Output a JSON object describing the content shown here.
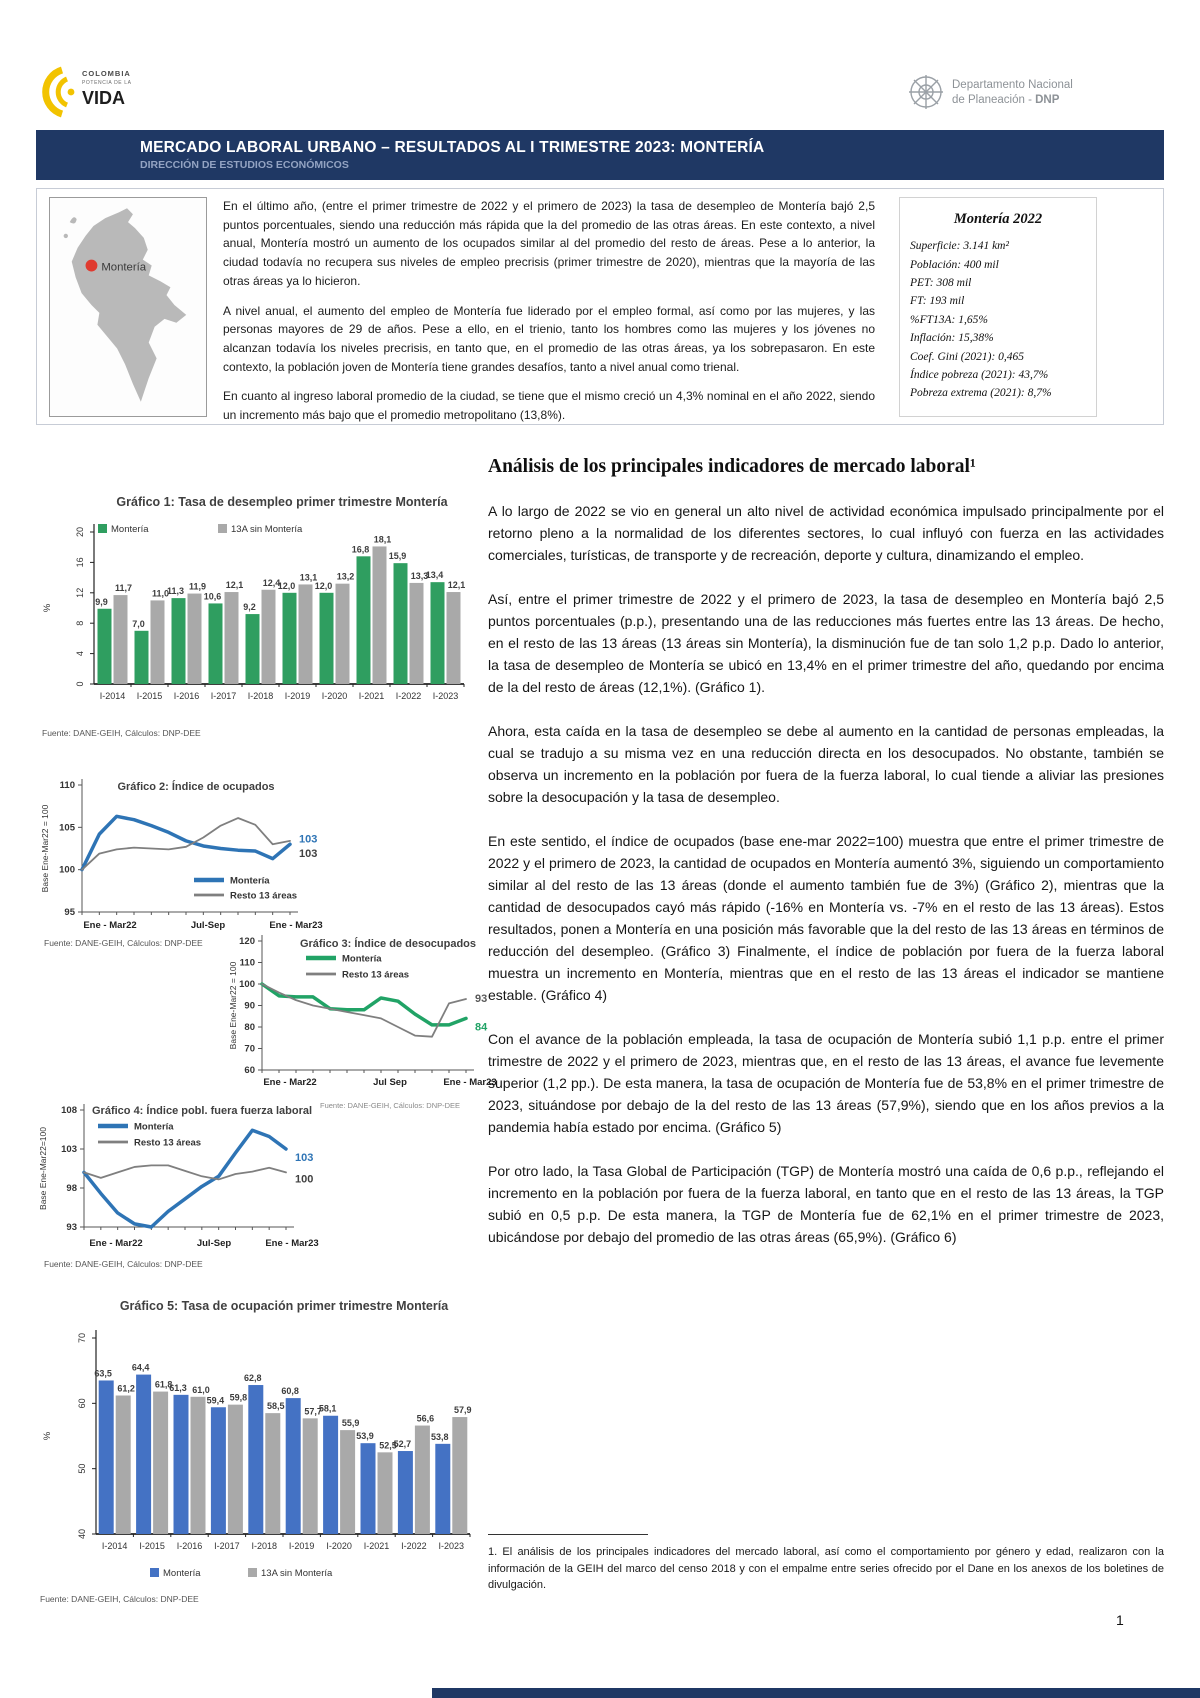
{
  "colors": {
    "navy": "#1f3864",
    "subtitle_blue": "#93a3c2",
    "green_bar": "#2f9e60",
    "gray_series": "#a9a9a9",
    "blue_bar": "#4472c4",
    "blue_line": "#2e74b5",
    "gray_line": "#7f7f7f",
    "green_line": "#21a366",
    "map_red": "#e03a2f"
  },
  "header": {
    "brand_left": {
      "line1": "COLOMBIA",
      "line2": "POTENCIA DE LA",
      "line3": "VIDA"
    },
    "brand_right": {
      "line1": "Departamento Nacional",
      "line2a": "de Planeación - ",
      "line2b": "DNP"
    },
    "title": "MERCADO LABORAL URBANO – RESULTADOS AL I TRIMESTRE 2023: MONTERÍA",
    "subtitle": "DIRECCIÓN DE ESTUDIOS ECONÓMICOS"
  },
  "intro": {
    "map_label": "Montería",
    "paragraphs": [
      "En el último año, (entre el primer trimestre de 2022 y el primero de 2023) la tasa de desempleo de Montería bajó 2,5 puntos porcentuales, siendo una reducción más rápida que la del promedio de las otras áreas. En este contexto, a nivel anual, Montería mostró un aumento de los ocupados similar al del promedio del resto de áreas. Pese a lo anterior, la ciudad todavía no recupera sus niveles de empleo precrisis (primer trimestre de 2020), mientras que la mayoría de las otras áreas ya lo hicieron.",
      "A nivel anual, el aumento del empleo de Montería fue liderado por el empleo formal, así como por las mujeres, y las personas mayores de 29 de años. Pese a ello, en el trienio, tanto los hombres como las mujeres y los jóvenes no alcanzan todavía los niveles precrisis, en tanto que, en el promedio de las otras áreas, ya los sobrepasaron. En este contexto,  la población joven de Montería tiene grandes desafíos, tanto a nivel anual como trienal.",
      "En cuanto al ingreso laboral promedio de la ciudad, se tiene que el mismo creció un 4,3% nominal en el año 2022, siendo un incremento más bajo que el promedio metropolitano (13,8%)."
    ],
    "stats": {
      "title": "Montería 2022",
      "lines": [
        "Superficie: 3.141 km²",
        "Población: 400 mil",
        "PET: 308 mil",
        "FT: 193 mil",
        "%FT13A: 1,65%",
        "Inflación: 15,38%",
        "Coef. Gini (2021): 0,465",
        "Índice pobreza (2021): 43,7%",
        "Pobreza extrema (2021): 8,7%"
      ]
    }
  },
  "analysis": {
    "heading": "Análisis de los principales indicadores de mercado laboral¹",
    "paragraphs": [
      "A lo largo de 2022 se vio en general un alto nivel de actividad económica impulsado principalmente por el retorno pleno a la normalidad de los diferentes sectores, lo cual influyó con fuerza en las actividades comerciales, turísticas, de transporte y de recreación, deporte y cultura, dinamizando el empleo.",
      "Así, entre el primer trimestre de 2022 y el primero de 2023, la tasa de desempleo en Montería bajó 2,5 puntos porcentuales (p.p.), presentando una de las reducciones más fuertes entre las 13 áreas. De hecho, en el resto de las 13 áreas (13 áreas sin Montería), la disminución fue de tan solo 1,2 p.p. Dado lo anterior, la tasa de desempleo de Montería se ubicó en 13,4% en el primer trimestre del año, quedando por encima de la del resto de áreas (12,1%). (Gráfico 1).",
      "Ahora, esta caída en la tasa de desempleo se debe al aumento en la cantidad de personas empleadas, la cual se tradujo a su misma vez en una reducción directa en los desocupados. No obstante, también se observa un incremento en la población por fuera de la fuerza laboral, lo cual tiende a aliviar las presiones sobre la desocupación y la tasa de desempleo.",
      "En este sentido, el índice de ocupados (base ene-mar 2022=100) muestra que entre el primer trimestre de 2022 y el primero de 2023, la cantidad de ocupados en Montería aumentó 3%, siguiendo un comportamiento similar al del resto de las 13 áreas (donde el aumento también fue de 3%) (Gráfico 2), mientras que la cantidad de desocupados cayó más rápido (-16% en Montería vs. -7% en el resto de las 13 áreas). Estos resultados, ponen a Montería en una posición más favorable que la del resto de las 13 áreas en términos de reducción del desempleo. (Gráfico 3) Finalmente, el índice de población por fuera de la fuerza laboral muestra un incremento en Montería, mientras que en el resto de las 13 áreas el indicador se mantiene estable. (Gráfico 4)",
      "Con el avance de la población empleada, la tasa de ocupación de Montería subió 1,1 p.p. entre el primer trimestre de 2022 y el primero de 2023, mientras que, en el resto de las 13 áreas, el avance fue levemente superior (1,2 pp.). De esta manera, la tasa de ocupación de Montería fue de 53,8% en el primer trimestre de 2023, situándose por debajo de la del resto de las 13 áreas (57,9%), siendo que en los años previos a la pandemia había estado por encima. (Gráfico 5)",
      "Por otro lado, la Tasa Global de Participación (TGP) de Montería mostró una caída de 0,6 p.p., reflejando el incremento en la población por fuera de la fuerza laboral, en tanto que en el resto de las 13 áreas, la TGP subió en 0,5 p.p. De esta manera, la TGP de Montería fue de 62,1% en el primer trimestre de 2023, ubicándose por debajo del promedio de las otras áreas (65,9%). (Gráfico 6)"
    ],
    "footnote": "1.   El análisis de los principales indicadores del mercado laboral, así como el comportamiento por género y edad, realizaron con la información de la GEIH del marco del censo 2018 y con el empalme entre series ofrecido por el Dane en los anexos de los boletines de divulgación.",
    "page_number": "1"
  },
  "chart_data": [
    {
      "id": "grafico1",
      "type": "bar",
      "title": "Gráfico 1: Tasa de desempleo primer trimestre Montería",
      "categories": [
        "I-2014",
        "I-2015",
        "I-2016",
        "I-2017",
        "I-2018",
        "I-2019",
        "I-2020",
        "I-2021",
        "I-2022",
        "I-2023"
      ],
      "series": [
        {
          "name": "Montería",
          "color": "#2f9e60",
          "values": [
            9.9,
            7.0,
            11.3,
            10.6,
            9.2,
            12.0,
            12.0,
            16.8,
            15.9,
            13.4
          ]
        },
        {
          "name": "13A sin Montería",
          "color": "#a9a9a9",
          "values": [
            11.7,
            11.0,
            11.9,
            12.1,
            12.4,
            13.1,
            13.2,
            18.1,
            13.3,
            12.1
          ]
        }
      ],
      "ylabel": "%",
      "ylim": [
        0,
        20
      ],
      "yticks": [
        0,
        4,
        8,
        12,
        16,
        20
      ],
      "grid": false,
      "legend_position": "top",
      "source": "Fuente: DANE-GEIH, Cálculos: DNP-DEE"
    },
    {
      "id": "grafico2",
      "type": "line",
      "title": "Gráfico 2: Índice de ocupados",
      "x_axis_labels": [
        "Ene - Mar22",
        "Jul-Sep",
        "Ene - Mar23"
      ],
      "series": [
        {
          "name": "Montería",
          "color": "#2e74b5",
          "width": 3.5,
          "end_label": "103",
          "end_label_color": "#2e74b5",
          "end_dy": -2,
          "values": [
            100,
            104.2,
            106.3,
            105.9,
            105.2,
            104.4,
            103.4,
            102.8,
            102.5,
            102.3,
            102.2,
            101.3,
            103
          ]
        },
        {
          "name": "Resto 13 áreas",
          "color": "#7f7f7f",
          "width": 1.8,
          "end_label": "103",
          "end_label_color": "#404040",
          "end_dy": 16,
          "values": [
            100,
            101.9,
            102.4,
            102.6,
            102.5,
            102.4,
            102.7,
            103.8,
            105.2,
            106.1,
            105.3,
            103,
            103.4
          ]
        }
      ],
      "ylabel": "Base Ene-Mar22 = 100",
      "ylim": [
        95,
        110
      ],
      "yticks": [
        95,
        100,
        105,
        110
      ],
      "grid": false,
      "legend_position": "inside-bottom",
      "source": "Fuente: DANE-GEIH, Cálculos: DNP-DEE"
    },
    {
      "id": "grafico3",
      "type": "line",
      "title": "Gráfico 3: Índice de desocupados",
      "x_axis_labels": [
        "Ene - Mar22",
        "Jul Sep",
        "Ene - Mar23"
      ],
      "series": [
        {
          "name": "Montería",
          "color": "#21a366",
          "width": 3.5,
          "end_label": "84",
          "end_label_color": "#21a366",
          "end_dy": 12,
          "values": [
            100,
            94.5,
            94,
            94,
            88.5,
            88,
            88,
            93.5,
            92,
            86,
            81,
            81,
            84
          ]
        },
        {
          "name": "Resto 13 áreas",
          "color": "#7f7f7f",
          "width": 1.8,
          "end_label": "93",
          "end_label_color": "#595959",
          "end_dy": 3,
          "values": [
            100,
            96,
            92.5,
            90,
            88.5,
            87,
            85.5,
            84,
            80,
            76,
            75.5,
            91,
            93
          ]
        }
      ],
      "ylabel": "Base Ene-Mar22 = 100",
      "ylim": [
        60,
        120
      ],
      "yticks": [
        60,
        70,
        80,
        90,
        100,
        110,
        120
      ],
      "grid": false,
      "legend_position": "inside-top",
      "source": "Fuente: DANE-GEIH, Cálculos: DNP-DEE"
    },
    {
      "id": "grafico4",
      "type": "line",
      "title": "Gráfico 4: Índice pobl. fuera fuerza laboral",
      "x_axis_labels": [
        "Ene - Mar22",
        "Jul-Sep",
        "Ene - Mar23"
      ],
      "series": [
        {
          "name": "Montería",
          "color": "#2e74b5",
          "width": 3.5,
          "end_label": "103",
          "end_label_color": "#2e74b5",
          "end_dy": 12,
          "values": [
            100,
            97.3,
            94.8,
            93.4,
            93,
            95,
            96.6,
            98.2,
            99.5,
            102.5,
            105.4,
            104.6,
            103
          ]
        },
        {
          "name": "Resto 13 áreas",
          "color": "#7f7f7f",
          "width": 1.8,
          "end_label": "100",
          "end_label_color": "#404040",
          "end_dy": 10,
          "values": [
            100,
            99.3,
            100,
            100.7,
            100.9,
            100.9,
            100.2,
            99.5,
            99.1,
            99.8,
            100.1,
            100.6,
            100
          ]
        }
      ],
      "ylabel": "Base Ene-Mar22=100",
      "ylim": [
        93,
        108
      ],
      "yticks": [
        93,
        98,
        103,
        108
      ],
      "grid": false,
      "legend_position": "inside-top",
      "source": "Fuente: DANE-GEIH, Cálculos: DNP-DEE"
    },
    {
      "id": "grafico5",
      "type": "bar",
      "title": "Gráfico 5: Tasa de ocupación primer trimestre Montería",
      "categories": [
        "I-2014",
        "I-2015",
        "I-2016",
        "I-2017",
        "I-2018",
        "I-2019",
        "I-2020",
        "I-2021",
        "I-2022",
        "I-2023"
      ],
      "series": [
        {
          "name": "Montería",
          "color": "#4472c4",
          "values": [
            63.5,
            64.4,
            61.3,
            59.4,
            62.8,
            60.8,
            58.1,
            53.9,
            52.7,
            53.8
          ]
        },
        {
          "name": "13A sin Montería",
          "color": "#a9a9a9",
          "values": [
            61.2,
            61.8,
            61.0,
            59.8,
            58.5,
            57.7,
            55.9,
            52.5,
            56.6,
            57.9
          ]
        }
      ],
      "ylabel": "%",
      "ylim": [
        40,
        70
      ],
      "yticks": [
        40,
        50,
        60,
        70
      ],
      "grid": false,
      "legend_position": "bottom",
      "source": "Fuente: DANE-GEIH, Cálculos: DNP-DEE"
    }
  ]
}
